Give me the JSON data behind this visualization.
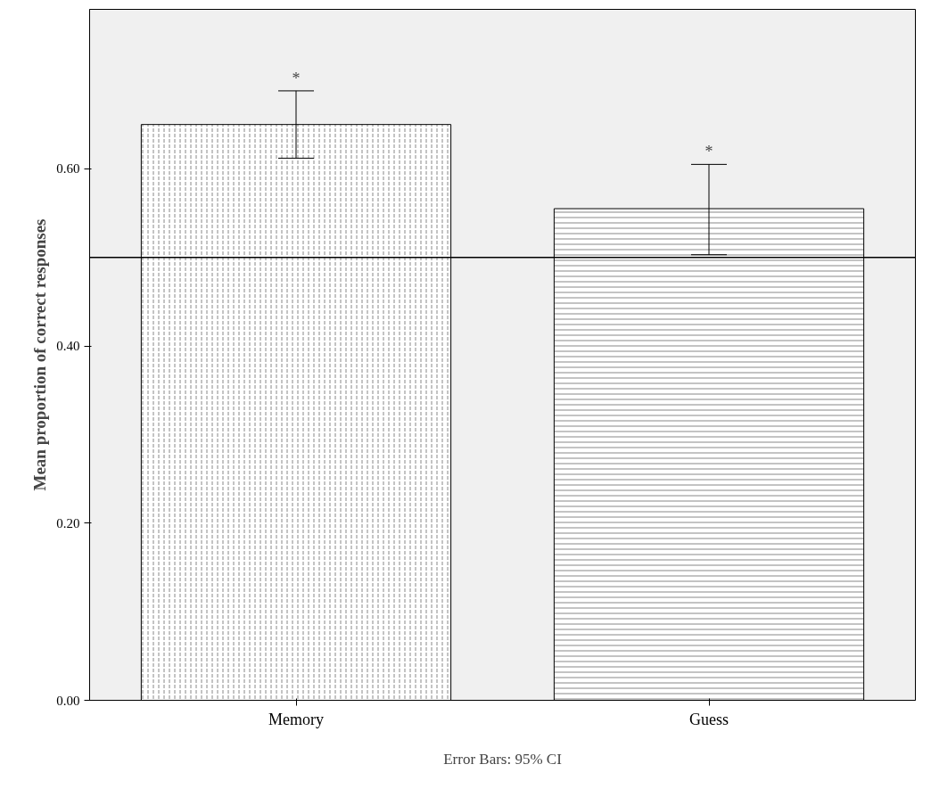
{
  "chart_data": {
    "type": "bar",
    "ylabel": "Mean proportion of correct responses",
    "categories": [
      "Memory",
      "Guess"
    ],
    "values": [
      0.65,
      0.555
    ],
    "errors": [
      [
        0.612,
        0.688
      ],
      [
        0.503,
        0.605
      ]
    ],
    "colors": [
      "#ffffff",
      "#ffffff"
    ],
    "ylim": [
      0,
      0.78
    ],
    "yticks": [
      {
        "value": 0,
        "label": "0.00"
      },
      {
        "value": 0.2,
        "label": "0.20"
      },
      {
        "value": 0.4,
        "label": "0.40"
      },
      {
        "value": 0.6,
        "label": "0.60"
      }
    ],
    "ref_lines": [
      {
        "axis": "y",
        "value": 0.5,
        "color": "#000000"
      }
    ],
    "annotations": [
      {
        "text": "*",
        "x": "Memory",
        "y": 0.688
      },
      {
        "text": "*",
        "x": "Guess",
        "y": 0.605
      },
      "Error Bars: 95% CI"
    ],
    "grid": false
  }
}
